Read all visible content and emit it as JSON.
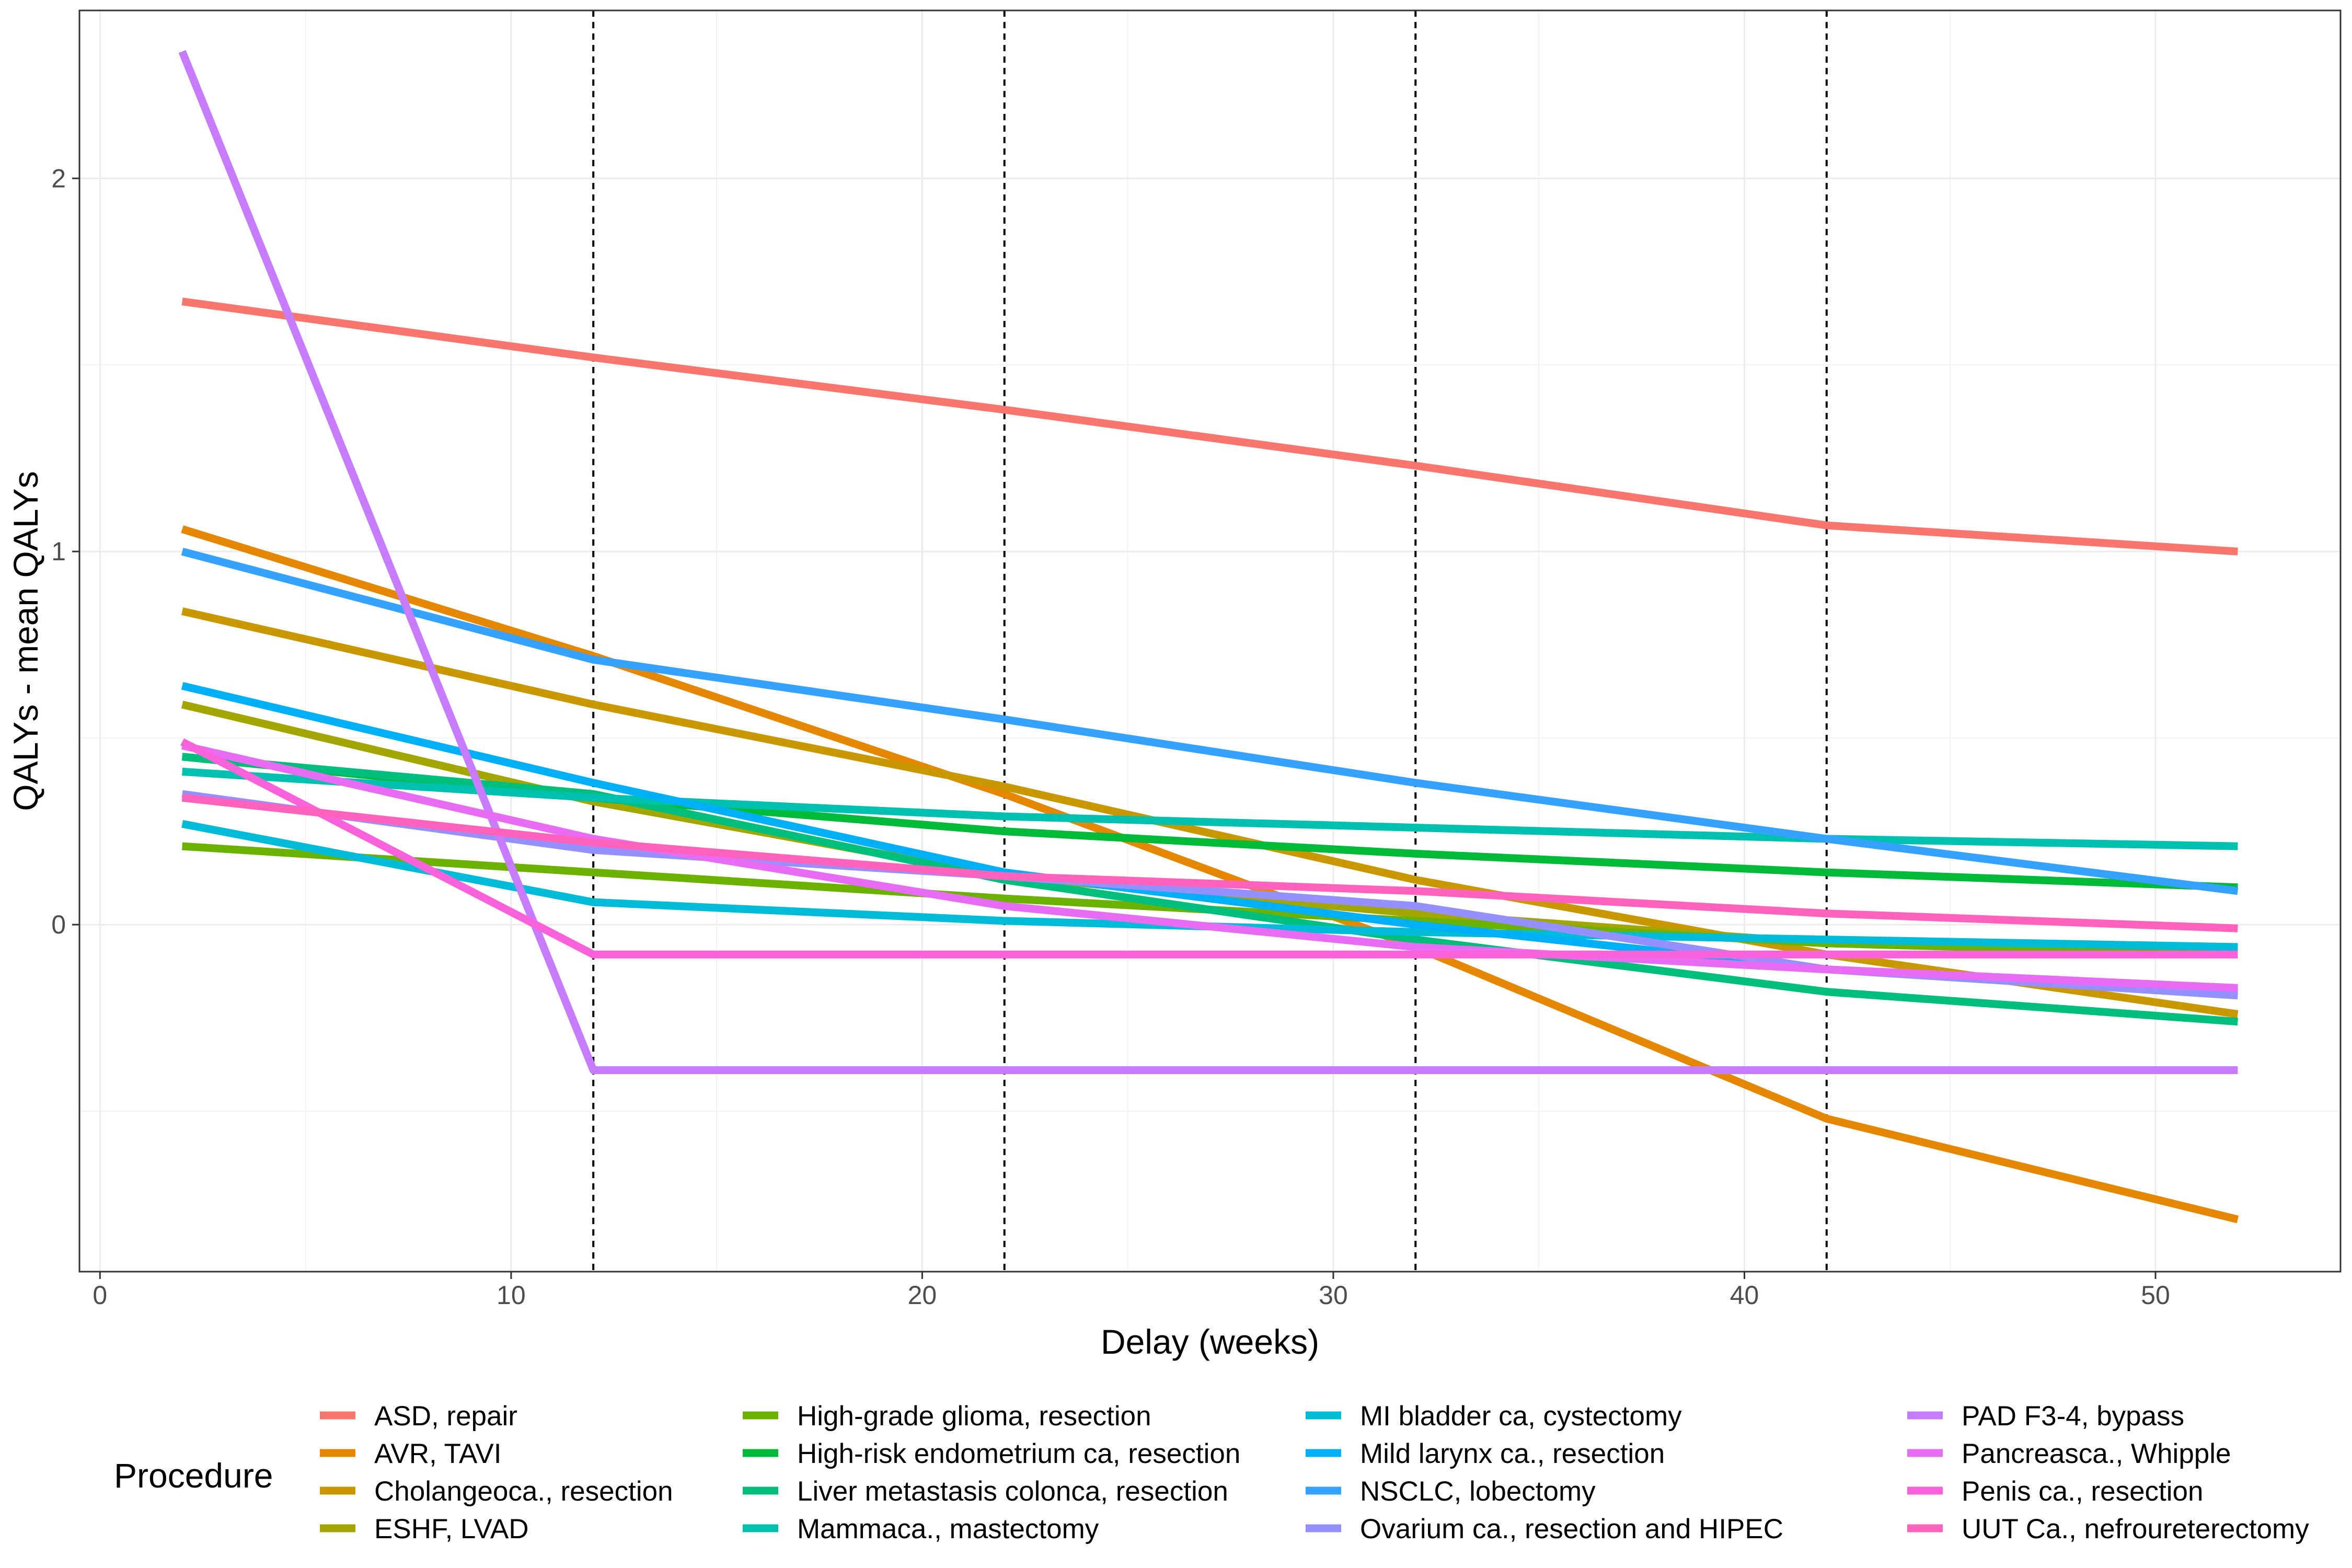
{
  "chart_data": {
    "type": "line",
    "xlabel": "Delay (weeks)",
    "ylabel": "QALYs - mean QALYs",
    "xlim": [
      -0.5,
      54.5
    ],
    "ylim": [
      -0.93,
      2.45
    ],
    "x_ticks": [
      0,
      10,
      20,
      30,
      40,
      50
    ],
    "y_ticks": [
      0,
      1,
      2
    ],
    "vlines": [
      12,
      22,
      32,
      42
    ],
    "grid": true,
    "legend": {
      "title": "Procedure",
      "position": "bottom",
      "columns": 4
    },
    "x": [
      2,
      12,
      22,
      32,
      42,
      52
    ],
    "series": [
      {
        "name": "ASD, repair",
        "color": "#F8766D",
        "values": [
          1.67,
          1.52,
          1.38,
          1.23,
          1.07,
          1.0
        ]
      },
      {
        "name": "AVR, TAVI",
        "color": "#E58700",
        "values": [
          1.06,
          0.72,
          0.35,
          -0.06,
          -0.52,
          -0.79
        ]
      },
      {
        "name": "Cholangeoca., resection",
        "color": "#C99800",
        "values": [
          0.84,
          0.59,
          0.37,
          0.12,
          -0.08,
          -0.24
        ]
      },
      {
        "name": "ESHF, LVAD",
        "color": "#A3A500",
        "values": [
          0.59,
          0.33,
          0.13,
          0.03,
          -0.05,
          -0.07
        ]
      },
      {
        "name": "High-grade glioma, resection",
        "color": "#6BB100",
        "values": [
          0.21,
          0.14,
          0.07,
          0.01,
          -0.05,
          -0.08
        ]
      },
      {
        "name": "High-risk endometrium ca, resection",
        "color": "#00BA38",
        "values": [
          0.45,
          0.34,
          0.25,
          0.19,
          0.14,
          0.1
        ]
      },
      {
        "name": "Liver metastasis colonca, resection",
        "color": "#00BF7D",
        "values": [
          0.45,
          0.35,
          0.12,
          -0.04,
          -0.18,
          -0.26
        ]
      },
      {
        "name": "Mammaca., mastectomy",
        "color": "#00C0AF",
        "values": [
          0.41,
          0.34,
          0.29,
          0.26,
          0.23,
          0.21
        ]
      },
      {
        "name": "MI bladder ca, cystectomy",
        "color": "#00BCD8",
        "values": [
          0.27,
          0.06,
          0.01,
          -0.02,
          -0.04,
          -0.06
        ]
      },
      {
        "name": "Mild larynx ca., resection",
        "color": "#00B0F6",
        "values": [
          0.64,
          0.38,
          0.14,
          0.0,
          -0.12,
          -0.18
        ]
      },
      {
        "name": "NSCLC, lobectomy",
        "color": "#35A2FF",
        "values": [
          1.0,
          0.71,
          0.55,
          0.38,
          0.23,
          0.09
        ]
      },
      {
        "name": "Ovarium ca., resection and HIPEC",
        "color": "#9590FF",
        "values": [
          0.35,
          0.2,
          0.13,
          0.05,
          -0.12,
          -0.19
        ]
      },
      {
        "name": "PAD F3-4, bypass",
        "color": "#C77CFF",
        "values": [
          2.34,
          -0.39,
          -0.39,
          -0.39,
          -0.39,
          -0.39
        ]
      },
      {
        "name": "Pancreasca., Whipple",
        "color": "#E76BF3",
        "values": [
          0.48,
          0.23,
          0.05,
          -0.06,
          -0.12,
          -0.17
        ]
      },
      {
        "name": "Penis ca., resection",
        "color": "#FA62DB",
        "values": [
          0.49,
          -0.08,
          -0.08,
          -0.08,
          -0.08,
          -0.08
        ]
      },
      {
        "name": "UUT Ca., nefroureterectomy",
        "color": "#FF62BC",
        "values": [
          0.34,
          0.22,
          0.13,
          0.09,
          0.03,
          -0.01
        ]
      }
    ]
  }
}
